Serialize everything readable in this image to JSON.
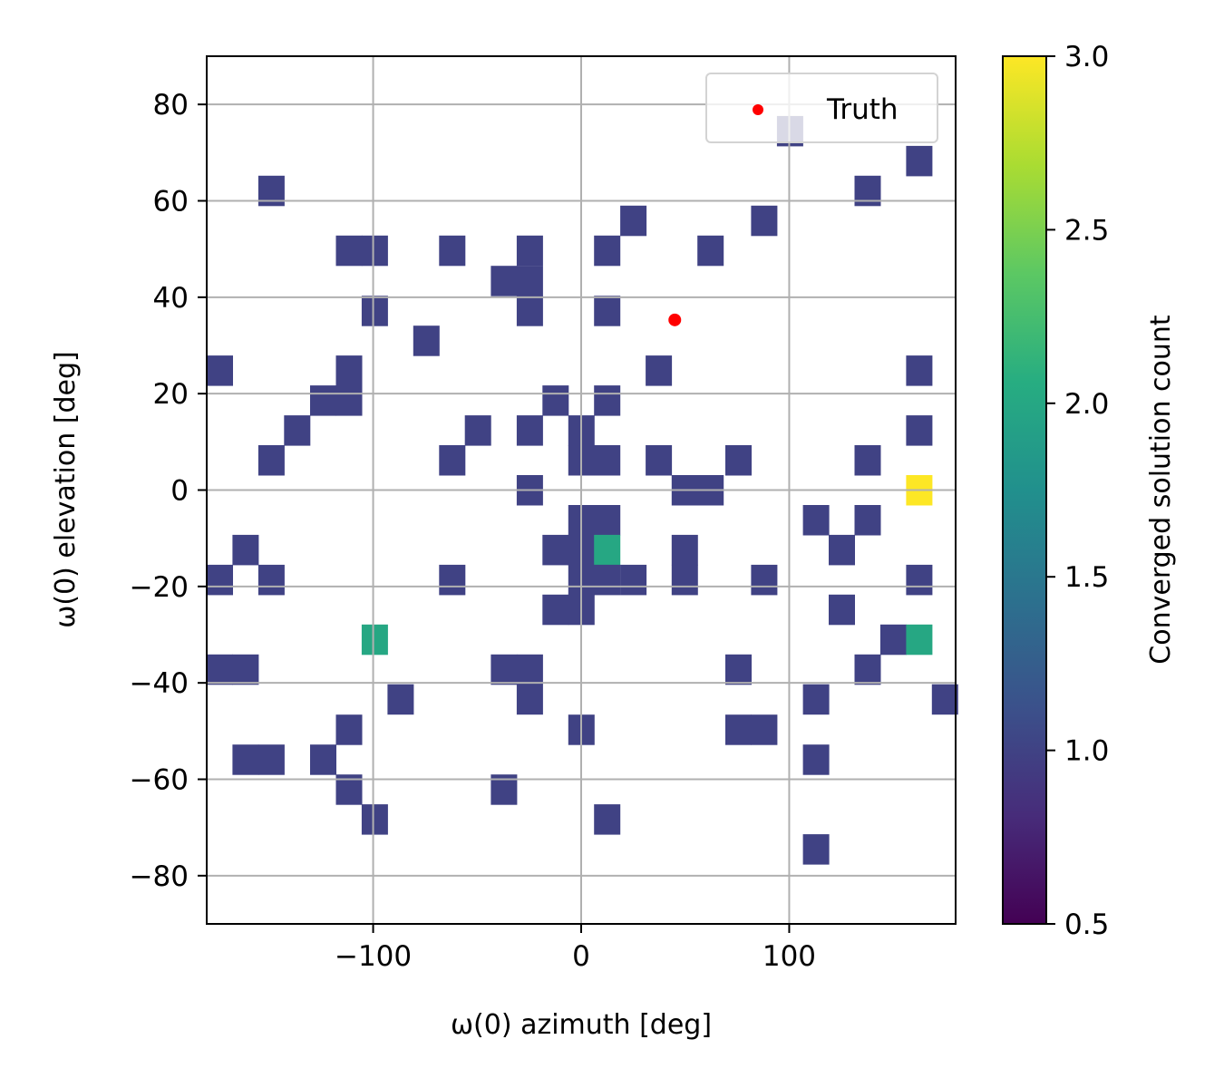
{
  "chart_data": {
    "type": "heatmap",
    "xlabel": "ω(0) azimuth [deg]",
    "ylabel": "ω(0) elevation [deg]",
    "colorbar_label": "Converged solution count",
    "xlim": [
      -180,
      180
    ],
    "ylim": [
      -90,
      90
    ],
    "clim": [
      0.5,
      3.0
    ],
    "colormap": "viridis",
    "grid": true,
    "legend_placement": "upper right",
    "x_ticks": [
      -100,
      0,
      100
    ],
    "x_tick_labels": [
      "−100",
      "0",
      "100"
    ],
    "y_ticks": [
      80,
      60,
      40,
      20,
      0,
      -20,
      -40,
      -60,
      -80
    ],
    "y_tick_labels": [
      "80",
      "60",
      "40",
      "20",
      "0",
      "−20",
      "−40",
      "−60",
      "−80"
    ],
    "colorbar_ticks": [
      3.0,
      2.5,
      2.0,
      1.5,
      1.0,
      0.5
    ],
    "colorbar_tick_labels": [
      "3.0",
      "2.5",
      "2.0",
      "1.5",
      "1.0",
      "0.5"
    ],
    "bin_width_deg": 12.41,
    "bin_height_deg": 6.21,
    "cells": [
      {
        "az": 100.3,
        "el": 74.5,
        "count": 1
      },
      {
        "az": 162.4,
        "el": 68.3,
        "count": 1
      },
      {
        "az": -149.0,
        "el": 62.1,
        "count": 1
      },
      {
        "az": 137.6,
        "el": 62.1,
        "count": 1
      },
      {
        "az": 25.0,
        "el": 55.9,
        "count": 1
      },
      {
        "az": 87.9,
        "el": 55.9,
        "count": 1
      },
      {
        "az": -111.7,
        "el": 49.7,
        "count": 1
      },
      {
        "az": -99.3,
        "el": 49.7,
        "count": 1
      },
      {
        "az": -62.1,
        "el": 49.7,
        "count": 1
      },
      {
        "az": -24.8,
        "el": 49.7,
        "count": 1
      },
      {
        "az": 12.4,
        "el": 49.7,
        "count": 1
      },
      {
        "az": 62.1,
        "el": 49.7,
        "count": 1
      },
      {
        "az": -37.2,
        "el": 43.4,
        "count": 1
      },
      {
        "az": -24.8,
        "el": 43.4,
        "count": 1
      },
      {
        "az": -99.3,
        "el": 37.2,
        "count": 1
      },
      {
        "az": -24.8,
        "el": 37.2,
        "count": 1
      },
      {
        "az": 12.4,
        "el": 37.2,
        "count": 1
      },
      {
        "az": -74.5,
        "el": 31.0,
        "count": 1
      },
      {
        "az": -173.8,
        "el": 24.8,
        "count": 1
      },
      {
        "az": -111.7,
        "el": 24.8,
        "count": 1
      },
      {
        "az": 37.2,
        "el": 24.8,
        "count": 1
      },
      {
        "az": 162.4,
        "el": 24.8,
        "count": 1
      },
      {
        "az": -124.1,
        "el": 18.6,
        "count": 1
      },
      {
        "az": -111.7,
        "el": 18.6,
        "count": 1
      },
      {
        "az": -12.4,
        "el": 18.6,
        "count": 1
      },
      {
        "az": 12.4,
        "el": 18.6,
        "count": 1
      },
      {
        "az": -136.6,
        "el": 12.4,
        "count": 1
      },
      {
        "az": -49.7,
        "el": 12.4,
        "count": 1
      },
      {
        "az": -24.8,
        "el": 12.4,
        "count": 1
      },
      {
        "az": 0.0,
        "el": 12.4,
        "count": 1
      },
      {
        "az": 162.4,
        "el": 12.4,
        "count": 1
      },
      {
        "az": -149.0,
        "el": 6.2,
        "count": 1
      },
      {
        "az": -62.1,
        "el": 6.2,
        "count": 1
      },
      {
        "az": 0.0,
        "el": 6.2,
        "count": 1
      },
      {
        "az": 12.4,
        "el": 6.2,
        "count": 1
      },
      {
        "az": 37.2,
        "el": 6.2,
        "count": 1
      },
      {
        "az": 75.5,
        "el": 6.2,
        "count": 1
      },
      {
        "az": 137.6,
        "el": 6.2,
        "count": 1
      },
      {
        "az": -24.8,
        "el": 0.0,
        "count": 1
      },
      {
        "az": 49.7,
        "el": 0.0,
        "count": 1
      },
      {
        "az": 62.1,
        "el": 0.0,
        "count": 1
      },
      {
        "az": 162.4,
        "el": 0.0,
        "count": 3
      },
      {
        "az": 0.0,
        "el": -6.2,
        "count": 1
      },
      {
        "az": 12.4,
        "el": -6.2,
        "count": 1
      },
      {
        "az": 112.8,
        "el": -6.2,
        "count": 1
      },
      {
        "az": 137.6,
        "el": -6.2,
        "count": 1
      },
      {
        "az": -161.4,
        "el": -12.4,
        "count": 1
      },
      {
        "az": -12.4,
        "el": -12.4,
        "count": 1
      },
      {
        "az": 0.0,
        "el": -12.4,
        "count": 1
      },
      {
        "az": 12.4,
        "el": -12.4,
        "count": 2
      },
      {
        "az": 49.7,
        "el": -12.4,
        "count": 1
      },
      {
        "az": 125.2,
        "el": -12.4,
        "count": 1
      },
      {
        "az": -173.8,
        "el": -18.6,
        "count": 1
      },
      {
        "az": -149.0,
        "el": -18.6,
        "count": 1
      },
      {
        "az": -62.1,
        "el": -18.6,
        "count": 1
      },
      {
        "az": 0.0,
        "el": -18.6,
        "count": 1
      },
      {
        "az": 12.4,
        "el": -18.6,
        "count": 1
      },
      {
        "az": 25.0,
        "el": -18.6,
        "count": 1
      },
      {
        "az": 49.7,
        "el": -18.6,
        "count": 1
      },
      {
        "az": 87.9,
        "el": -18.6,
        "count": 1
      },
      {
        "az": 162.4,
        "el": -18.6,
        "count": 1
      },
      {
        "az": -12.4,
        "el": -24.8,
        "count": 1
      },
      {
        "az": 0.0,
        "el": -24.8,
        "count": 1
      },
      {
        "az": 125.2,
        "el": -24.8,
        "count": 1
      },
      {
        "az": -99.3,
        "el": -31.0,
        "count": 2
      },
      {
        "az": 150.0,
        "el": -31.0,
        "count": 1
      },
      {
        "az": 162.4,
        "el": -31.0,
        "count": 2
      },
      {
        "az": -173.8,
        "el": -37.2,
        "count": 1
      },
      {
        "az": -161.4,
        "el": -37.2,
        "count": 1
      },
      {
        "az": -37.2,
        "el": -37.2,
        "count": 1
      },
      {
        "az": -24.8,
        "el": -37.2,
        "count": 1
      },
      {
        "az": 75.5,
        "el": -37.2,
        "count": 1
      },
      {
        "az": 137.6,
        "el": -37.2,
        "count": 1
      },
      {
        "az": -86.9,
        "el": -43.4,
        "count": 1
      },
      {
        "az": -24.8,
        "el": -43.4,
        "count": 1
      },
      {
        "az": 112.8,
        "el": -43.4,
        "count": 1
      },
      {
        "az": 174.8,
        "el": -43.4,
        "count": 1
      },
      {
        "az": -111.7,
        "el": -49.7,
        "count": 1
      },
      {
        "az": 0.0,
        "el": -49.7,
        "count": 1
      },
      {
        "az": 75.5,
        "el": -49.7,
        "count": 1
      },
      {
        "az": 87.9,
        "el": -49.7,
        "count": 1
      },
      {
        "az": -161.4,
        "el": -55.9,
        "count": 1
      },
      {
        "az": -149.0,
        "el": -55.9,
        "count": 1
      },
      {
        "az": -124.1,
        "el": -55.9,
        "count": 1
      },
      {
        "az": 112.8,
        "el": -55.9,
        "count": 1
      },
      {
        "az": -111.7,
        "el": -62.1,
        "count": 1
      },
      {
        "az": -37.2,
        "el": -62.1,
        "count": 1
      },
      {
        "az": -99.3,
        "el": -68.3,
        "count": 1
      },
      {
        "az": 12.4,
        "el": -68.3,
        "count": 1
      },
      {
        "az": 112.8,
        "el": -74.5,
        "count": 1
      }
    ],
    "truth_point": {
      "az": 45.0,
      "el": 35.3
    },
    "legend": [
      {
        "label": "Truth",
        "color": "#ff0000"
      }
    ],
    "colors": {
      "truth": "#ff0000",
      "grid": "#b0b0b0",
      "axes": "#000000"
    }
  }
}
